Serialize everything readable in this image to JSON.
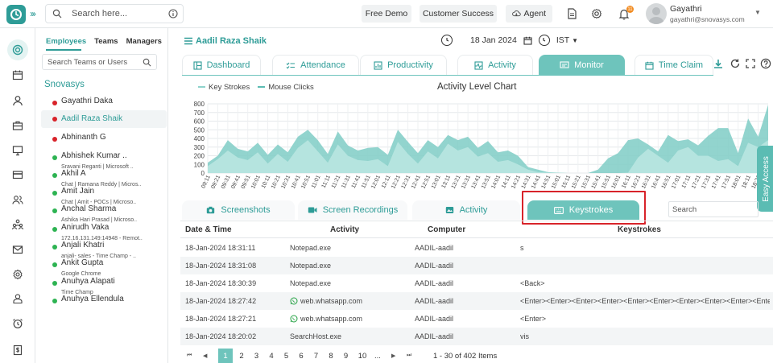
{
  "topbar": {
    "search_placeholder": "Search here...",
    "free_demo": "Free Demo",
    "customer_success": "Customer Success",
    "agent": "Agent",
    "notification_count": "11",
    "user_name": "Gayathri",
    "user_email": "gayathri@snovasys.com"
  },
  "panel": {
    "tabs": [
      "Employees",
      "Teams",
      "Managers"
    ],
    "search_placeholder": "Search Teams or Users",
    "org": "Snovasys",
    "employees": [
      {
        "name": "Gayathri Daka",
        "sub": "",
        "status": "#d8232a"
      },
      {
        "name": "Aadil Raza Shaik",
        "sub": "",
        "status": "#d8232a"
      },
      {
        "name": "Abhinanth G",
        "sub": "",
        "status": "#d8232a"
      },
      {
        "name": "Abhishek Kumar ..",
        "sub": "Sravani Reganti | Microsoft ..",
        "status": "#2db352"
      },
      {
        "name": "Akhil A",
        "sub": "Chat | Ramana Reddy | Micros..",
        "status": "#2db352"
      },
      {
        "name": "Amit Jain",
        "sub": "Chat | Amit - POCs | Microso..",
        "status": "#2db352"
      },
      {
        "name": "Anchal Sharma",
        "sub": "Ashika Hari Prasad | Microso..",
        "status": "#2db352"
      },
      {
        "name": "Anirudh Vaka",
        "sub": "172.16.131.149:14948 - Remot..",
        "status": "#2db352"
      },
      {
        "name": "Anjali Khatri",
        "sub": "anjali- sales - Time Champ - ..",
        "status": "#2db352"
      },
      {
        "name": "Ankit Gupta",
        "sub": "Google Chrome",
        "status": "#2db352"
      },
      {
        "name": "Anuhya Alapati",
        "sub": "Time Champ",
        "status": "#2db352"
      },
      {
        "name": "Anuhya Ellendula",
        "sub": "",
        "status": "#2db352"
      }
    ]
  },
  "header": {
    "employee_name": "Aadil Raza Shaik",
    "date": "18 Jan 2024",
    "timezone": "IST"
  },
  "tabs": [
    "Dashboard",
    "Attendance",
    "Productivity",
    "Activity",
    "Monitor",
    "Time Claim"
  ],
  "chart": {
    "legend": [
      "Key Strokes",
      "Mouse Clicks"
    ],
    "title": "Activity Level Chart"
  },
  "easy_access": "Easy Access",
  "subtabs": [
    "Screenshots",
    "Screen Recordings",
    "Activity",
    "Keystrokes"
  ],
  "table_search_placeholder": "Search",
  "table": {
    "headers": [
      "Date & Time",
      "Activity",
      "Computer",
      "Keystrokes"
    ],
    "rows": [
      {
        "time": "18-Jan-2024 18:31:11",
        "activity": "Notepad.exe",
        "computer": "AADIL-aadil",
        "keys": "s",
        "wa": false
      },
      {
        "time": "18-Jan-2024 18:31:08",
        "activity": "Notepad.exe",
        "computer": "AADIL-aadil",
        "keys": "",
        "wa": false
      },
      {
        "time": "18-Jan-2024 18:30:39",
        "activity": "Notepad.exe",
        "computer": "AADIL-aadil",
        "keys": "<Back>",
        "wa": false
      },
      {
        "time": "18-Jan-2024 18:27:42",
        "activity": "web.whatsapp.com",
        "computer": "AADIL-aadil",
        "keys": "<Enter><Enter><Enter><Enter><Enter><Enter><Enter><Enter><Enter><Enter><Enter><",
        "wa": true
      },
      {
        "time": "18-Jan-2024 18:27:21",
        "activity": "web.whatsapp.com",
        "computer": "AADIL-aadil",
        "keys": "<Enter>",
        "wa": true
      },
      {
        "time": "18-Jan-2024 18:20:02",
        "activity": "SearchHost.exe",
        "computer": "AADIL-aadil",
        "keys": "vis",
        "wa": false
      }
    ]
  },
  "pager": {
    "pages": [
      "1",
      "2",
      "3",
      "4",
      "5",
      "6",
      "7",
      "8",
      "9",
      "10",
      "..."
    ],
    "summary": "1 - 30 of 402 Items"
  },
  "colors": {
    "accent": "#2e9c97",
    "accent_light": "#6ec4bc",
    "keystrokes_area": "#8fd3cc",
    "mouse_area": "#c6ebe6",
    "highlight": "#d8232a"
  },
  "chart_data": {
    "type": "area",
    "title": "Activity Level Chart",
    "legend": [
      "Key Strokes",
      "Mouse Clicks"
    ],
    "ylim": [
      0,
      800
    ],
    "yticks": [
      0,
      100,
      200,
      300,
      400,
      500,
      600,
      700,
      800
    ],
    "categories": [
      "09:11",
      "09:21",
      "09:31",
      "09:41",
      "09:51",
      "10:01",
      "10:11",
      "10:21",
      "10:31",
      "10:41",
      "10:51",
      "11:01",
      "11:11",
      "11:21",
      "11:31",
      "11:41",
      "11:51",
      "12:01",
      "12:11",
      "12:21",
      "12:31",
      "12:41",
      "12:51",
      "13:01",
      "13:11",
      "13:21",
      "13:31",
      "13:41",
      "13:51",
      "14:01",
      "14:11",
      "14:21",
      "14:31",
      "14:41",
      "14:51",
      "15:01",
      "15:11",
      "15:21",
      "15:31",
      "15:41",
      "15:51",
      "16:01",
      "16:11",
      "16:21",
      "16:31",
      "16:41",
      "16:51",
      "17:01",
      "17:11",
      "17:21",
      "17:31",
      "17:41",
      "17:51",
      "18:01",
      "18:11",
      "18:21",
      "18:31"
    ],
    "series": [
      {
        "name": "Key Strokes",
        "values": [
          80,
          160,
          260,
          180,
          150,
          240,
          110,
          220,
          130,
          290,
          380,
          250,
          120,
          330,
          200,
          150,
          140,
          160,
          80,
          360,
          220,
          110,
          250,
          170,
          340,
          260,
          300,
          190,
          230,
          130,
          150,
          100,
          40,
          10,
          5,
          3,
          0,
          0,
          0,
          0,
          0,
          0,
          5,
          180,
          280,
          200,
          120,
          260,
          300,
          200,
          200,
          140,
          160,
          80,
          350,
          300,
          380
        ]
      },
      {
        "name": "Mouse Clicks",
        "values": [
          120,
          200,
          380,
          280,
          250,
          350,
          210,
          330,
          240,
          420,
          500,
          380,
          220,
          480,
          320,
          260,
          290,
          300,
          210,
          500,
          360,
          230,
          380,
          300,
          440,
          380,
          420,
          290,
          370,
          240,
          260,
          200,
          70,
          40,
          10,
          5,
          0,
          0,
          0,
          40,
          170,
          230,
          380,
          400,
          330,
          250,
          440,
          370,
          390,
          320,
          430,
          520,
          520,
          230,
          630,
          420,
          790
        ]
      }
    ]
  }
}
